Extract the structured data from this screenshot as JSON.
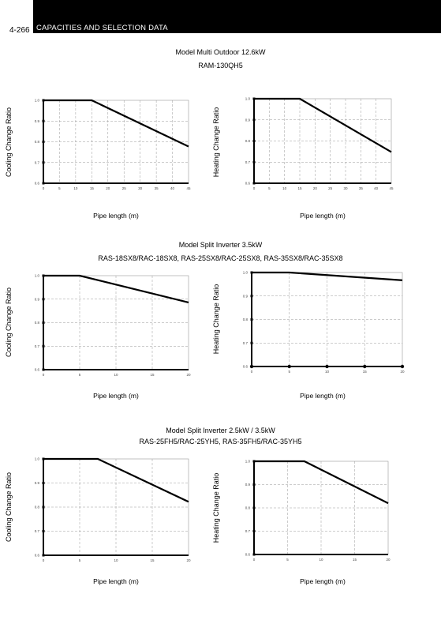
{
  "page": {
    "number": "4-266",
    "header": "CAPACITIES AND SELECTION DATA"
  },
  "sections": [
    {
      "title": "Model Multi Outdoor 12.6kW",
      "subtitle": "RAM-130QH5"
    },
    {
      "title": "Model Split Inverter 3.5kW",
      "subtitle": "RAS-18SX8/RAC-18SX8, RAS-25SX8/RAC-25SX8, RAS-35SX8/RAC-35SX8"
    },
    {
      "title": "Model Split Inverter 2.5kW / 3.5kW",
      "subtitle": "RAS-25FH5/RAC-25YH5, RAS-35FH5/RAC-35YH5"
    }
  ],
  "colors": {
    "line": "#000000",
    "grid": "#9a9a9a",
    "header_bg": "#000000"
  },
  "chart_data": [
    {
      "type": "line",
      "xlabel": "Pipe length (m)",
      "ylabel": "Cooling Change Ratio",
      "xticks": [
        "0",
        "5",
        "10",
        "15",
        "20",
        "25",
        "30",
        "35",
        "40",
        "45"
      ],
      "yticks": [
        "0.6",
        "0.7",
        "0.8",
        "0.9",
        "1.0"
      ],
      "xlim": [
        0,
        45
      ],
      "ylim": [
        0.6,
        1.0
      ],
      "x": [
        0,
        15,
        45
      ],
      "y": [
        1.0,
        1.0,
        0.777
      ]
    },
    {
      "type": "line",
      "xlabel": "Pipe length (m)",
      "ylabel": "Heating Change Ratio",
      "xticks": [
        "0",
        "5",
        "10",
        "15",
        "20",
        "25",
        "30",
        "35",
        "40",
        "45"
      ],
      "yticks": [
        "0.6",
        "0.7",
        "0.8",
        "0.9",
        "1.0"
      ],
      "xlim": [
        0,
        45
      ],
      "ylim": [
        0.6,
        1.0
      ],
      "x": [
        0,
        15,
        45
      ],
      "y": [
        1.0,
        1.0,
        0.748
      ]
    },
    {
      "type": "line",
      "xlabel": "Pipe length (m)",
      "ylabel": "Cooling Change Ratio",
      "xticks": [
        "0",
        "5",
        "10",
        "15",
        "20"
      ],
      "yticks": [
        "0.6",
        "0.7",
        "0.8",
        "0.9",
        "1.0"
      ],
      "xlim": [
        0,
        20
      ],
      "ylim": [
        0.6,
        1.0
      ],
      "x": [
        0,
        5,
        20
      ],
      "y": [
        1.0,
        1.0,
        0.886
      ]
    },
    {
      "type": "line",
      "xlabel": "Pipe length (m)",
      "ylabel": "Heating Change Ratio",
      "xticks": [
        "0",
        "5",
        "10",
        "15",
        "20"
      ],
      "yticks": [
        "0.6",
        "0.7",
        "0.8",
        "0.9",
        "1.0"
      ],
      "xlim": [
        0,
        20
      ],
      "ylim": [
        0.6,
        1.0
      ],
      "x": [
        0,
        5,
        20
      ],
      "y": [
        1.0,
        1.0,
        0.967
      ],
      "markers": true
    },
    {
      "type": "line",
      "xlabel": "Pipe length (m)",
      "ylabel": "Cooling Change Ratio",
      "xticks": [
        "0",
        "5",
        "10",
        "15",
        "20"
      ],
      "yticks": [
        "0.6",
        "0.7",
        "0.8",
        "0.9",
        "1.0"
      ],
      "xlim": [
        0,
        20
      ],
      "ylim": [
        0.6,
        1.0
      ],
      "x": [
        0,
        7.5,
        20
      ],
      "y": [
        1.0,
        1.0,
        0.822
      ]
    },
    {
      "type": "line",
      "xlabel": "Pipe length (m)",
      "ylabel": "Heating Change Ratio",
      "xticks": [
        "0",
        "5",
        "10",
        "15",
        "20"
      ],
      "yticks": [
        "0.6",
        "0.7",
        "0.8",
        "0.9",
        "1.0"
      ],
      "xlim": [
        0,
        20
      ],
      "ylim": [
        0.6,
        1.0
      ],
      "x": [
        0,
        7.5,
        20
      ],
      "y": [
        1.0,
        1.0,
        0.82
      ]
    }
  ]
}
